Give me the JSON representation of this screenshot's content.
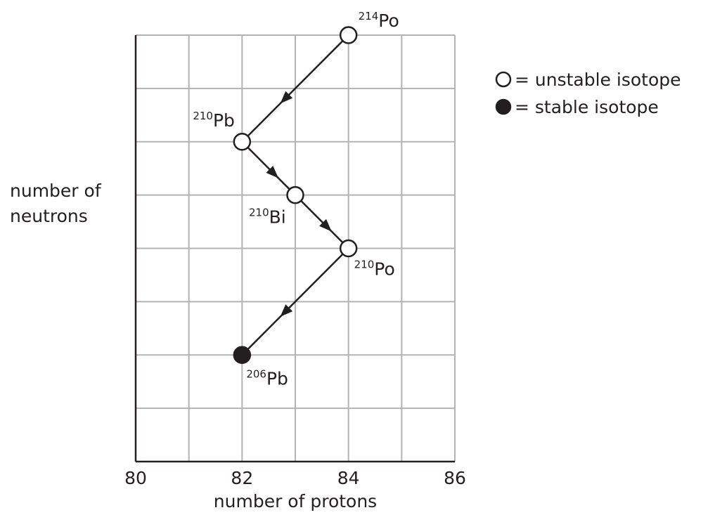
{
  "chart_data": {
    "type": "scatter",
    "xlabel": "number of protons",
    "ylabel": "number of neutrons",
    "xlim": [
      80,
      86
    ],
    "x_ticks": [
      80,
      82,
      84,
      86
    ],
    "ylim": [
      122,
      130
    ],
    "y_ticks": [],
    "grid": true,
    "legend": {
      "position": "top-right",
      "entries": [
        {
          "marker": "open-circle",
          "label": "= unstable isotope"
        },
        {
          "marker": "filled-circle",
          "label": "= stable isotope"
        }
      ]
    },
    "isotopes": [
      {
        "id": "po214",
        "mass": "214",
        "symbol": "Po",
        "protons": 84,
        "neutrons": 130,
        "stable": false
      },
      {
        "id": "pb210",
        "mass": "210",
        "symbol": "Pb",
        "protons": 82,
        "neutrons": 128,
        "stable": false
      },
      {
        "id": "bi210",
        "mass": "210",
        "symbol": "Bi",
        "protons": 83,
        "neutrons": 127,
        "stable": false
      },
      {
        "id": "po210",
        "mass": "210",
        "symbol": "Po",
        "protons": 84,
        "neutrons": 126,
        "stable": false
      },
      {
        "id": "pb206",
        "mass": "206",
        "symbol": "Pb",
        "protons": 82,
        "neutrons": 124,
        "stable": true
      }
    ],
    "decays": [
      {
        "from": "po214",
        "to": "pb210"
      },
      {
        "from": "pb210",
        "to": "bi210"
      },
      {
        "from": "bi210",
        "to": "po210"
      },
      {
        "from": "po210",
        "to": "pb206"
      }
    ]
  },
  "colors": {
    "grid": "#b3b3b3",
    "ink": "#231f20",
    "open_fill": "#ffffff",
    "filled_fill": "#231f20"
  }
}
